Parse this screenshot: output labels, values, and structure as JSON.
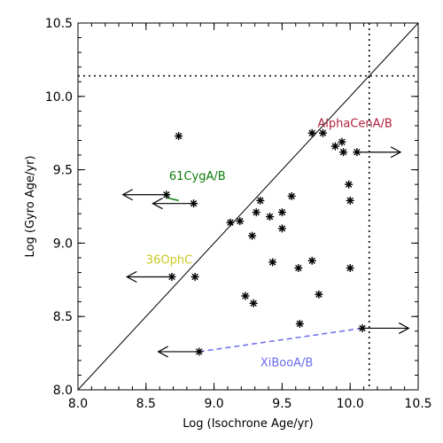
{
  "chart_data": {
    "type": "scatter",
    "xlabel": "Log (Isochrone Age/yr)",
    "ylabel": "Log (Gyro Age/yr)",
    "xlim": [
      8.0,
      10.5
    ],
    "ylim": [
      8.0,
      10.5
    ],
    "x_ticks": [
      "8.0",
      "8.5",
      "9.0",
      "9.5",
      "10.0",
      "10.5"
    ],
    "y_ticks": [
      "8.0",
      "8.5",
      "9.0",
      "9.5",
      "10.0",
      "10.5"
    ],
    "reference_line": {
      "from": [
        8.0,
        8.0
      ],
      "to": [
        10.5,
        10.5
      ]
    },
    "dotted_lines": {
      "vertical_x": 10.14,
      "horizontal_y": 10.14
    },
    "points": [
      {
        "x": 8.74,
        "y": 9.73
      },
      {
        "x": 8.65,
        "y": 9.33
      },
      {
        "x": 8.85,
        "y": 9.27
      },
      {
        "x": 9.12,
        "y": 9.14
      },
      {
        "x": 9.19,
        "y": 9.15
      },
      {
        "x": 9.31,
        "y": 9.21
      },
      {
        "x": 9.34,
        "y": 9.29
      },
      {
        "x": 9.41,
        "y": 9.18
      },
      {
        "x": 9.5,
        "y": 9.21
      },
      {
        "x": 9.5,
        "y": 9.1
      },
      {
        "x": 9.57,
        "y": 9.32
      },
      {
        "x": 9.28,
        "y": 9.05
      },
      {
        "x": 9.43,
        "y": 8.87
      },
      {
        "x": 9.62,
        "y": 8.83
      },
      {
        "x": 9.72,
        "y": 8.88
      },
      {
        "x": 9.72,
        "y": 9.75
      },
      {
        "x": 9.8,
        "y": 9.75
      },
      {
        "x": 9.89,
        "y": 9.66
      },
      {
        "x": 9.94,
        "y": 9.69
      },
      {
        "x": 9.95,
        "y": 9.62
      },
      {
        "x": 10.05,
        "y": 9.62
      },
      {
        "x": 9.99,
        "y": 9.4
      },
      {
        "x": 10.0,
        "y": 9.29
      },
      {
        "x": 10.0,
        "y": 8.83
      },
      {
        "x": 8.69,
        "y": 8.77
      },
      {
        "x": 8.86,
        "y": 8.77
      },
      {
        "x": 9.23,
        "y": 8.64
      },
      {
        "x": 9.29,
        "y": 8.59
      },
      {
        "x": 9.77,
        "y": 8.65
      },
      {
        "x": 9.63,
        "y": 8.45
      },
      {
        "x": 8.89,
        "y": 8.26
      },
      {
        "x": 10.09,
        "y": 8.42
      }
    ],
    "arrows": [
      {
        "x_from": 8.65,
        "x_to": 8.33,
        "y": 9.33
      },
      {
        "x_from": 8.85,
        "x_to": 8.55,
        "y": 9.27
      },
      {
        "x_from": 8.69,
        "x_to": 8.36,
        "y": 8.77
      },
      {
        "x_from": 8.89,
        "x_to": 8.59,
        "y": 8.26
      },
      {
        "x_from": 10.05,
        "x_to": 10.37,
        "y": 9.62
      },
      {
        "x_from": 10.09,
        "x_to": 10.43,
        "y": 8.42
      }
    ],
    "pairs": [
      {
        "name": "61CygA/B",
        "color": "#0a7d0a",
        "dash": false,
        "from": [
          8.65,
          9.31
        ],
        "to": [
          8.74,
          9.29
        ],
        "label_x": 8.67,
        "label_y": 9.43,
        "anchor": "start"
      },
      {
        "name": "AlphaCenA/B",
        "color": "#b0213e",
        "dash": false,
        "from": [
          9.89,
          9.66
        ],
        "to": [
          9.89,
          9.66
        ],
        "label_x": 9.76,
        "label_y": 9.79,
        "anchor": "start"
      },
      {
        "name": "36OphC",
        "color": "#c8c820",
        "dash": false,
        "from": [
          8.69,
          8.77
        ],
        "to": [
          8.69,
          8.77
        ],
        "label_x": 8.5,
        "label_y": 8.86,
        "anchor": "start"
      },
      {
        "name": "XiBooA/B",
        "color": "#6b6bf0",
        "dash": true,
        "from": [
          8.89,
          8.26
        ],
        "to": [
          10.09,
          8.42
        ],
        "label_x": 9.34,
        "label_y": 8.16,
        "anchor": "start"
      }
    ]
  }
}
